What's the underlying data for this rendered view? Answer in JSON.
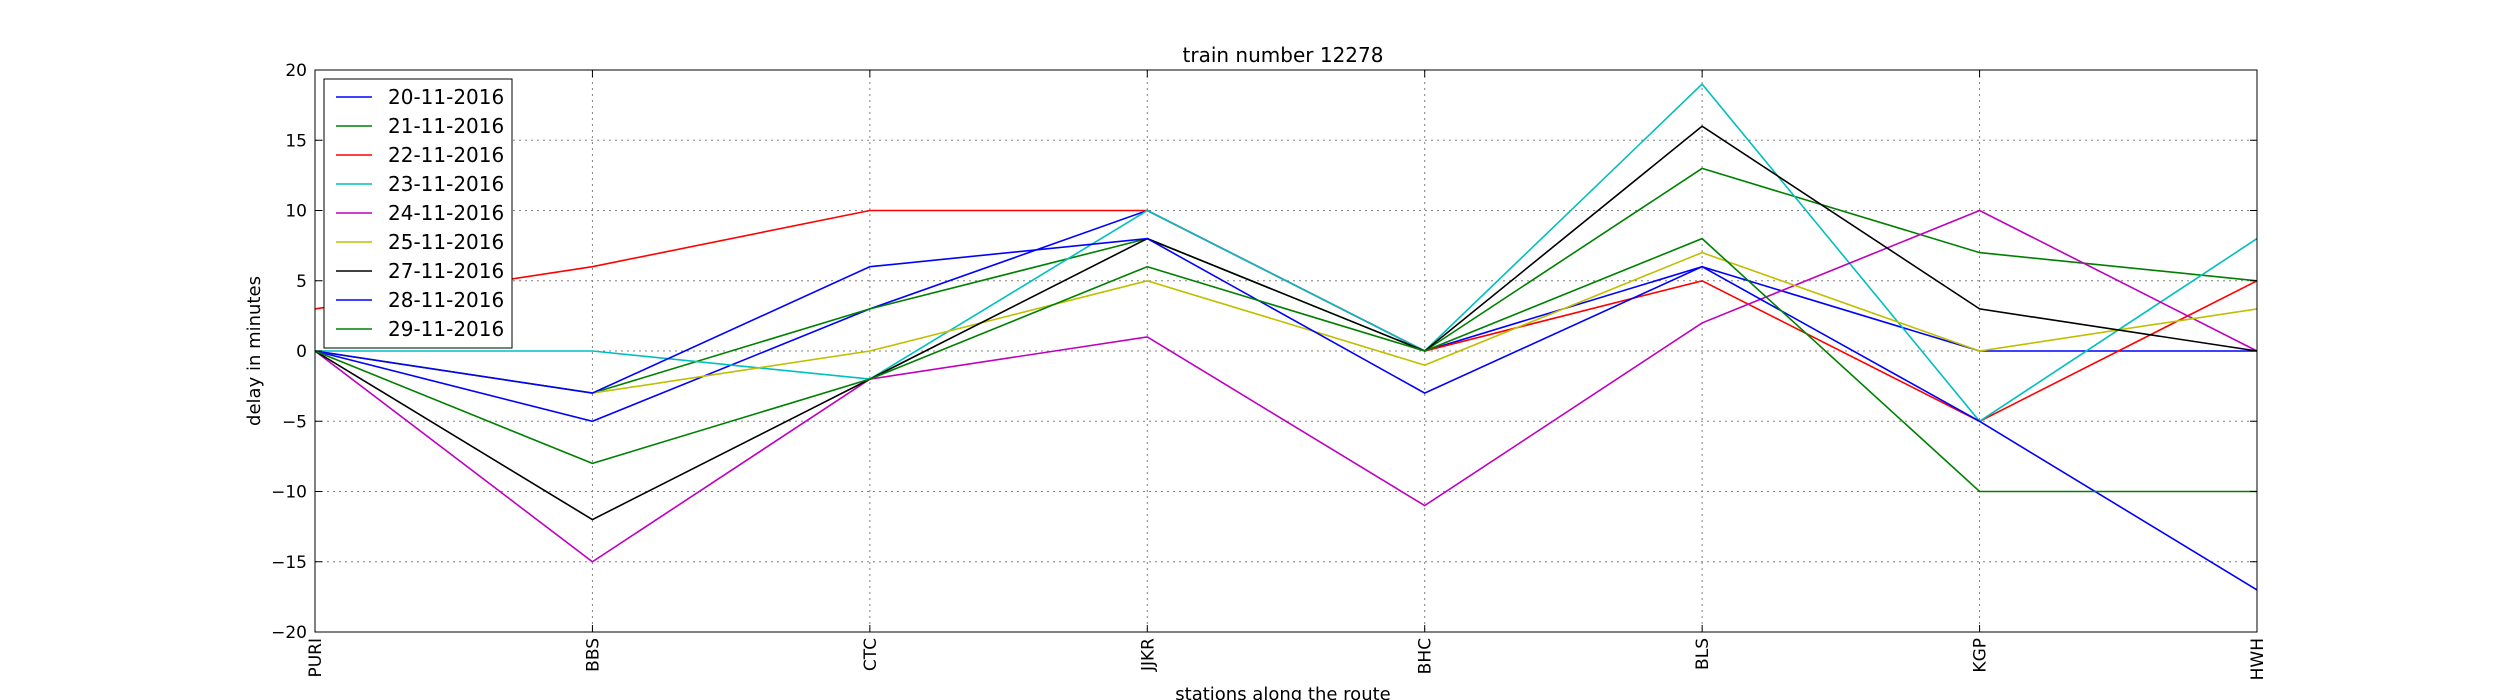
{
  "chart_data": {
    "type": "line",
    "title": "train number 12278",
    "xlabel": "stations along the route",
    "ylabel": "delay in minutes",
    "categories": [
      "PURI",
      "BBS",
      "CTC",
      "JJKR",
      "BHC",
      "BLS",
      "KGP",
      "HWH"
    ],
    "ylim": [
      -20,
      20
    ],
    "yticks": [
      -20,
      -15,
      -10,
      -5,
      0,
      5,
      10,
      15,
      20
    ],
    "grid": true,
    "legend_position": "top-left",
    "series": [
      {
        "name": "20-11-2016",
        "color": "#0000ff",
        "values": [
          0,
          -5,
          3,
          10,
          0,
          6,
          0,
          0
        ]
      },
      {
        "name": "21-11-2016",
        "color": "#008000",
        "values": [
          0,
          -3,
          3,
          8,
          0,
          13,
          7,
          5
        ]
      },
      {
        "name": "22-11-2016",
        "color": "#ff0000",
        "values": [
          3,
          6,
          10,
          10,
          0,
          5,
          -5,
          5
        ]
      },
      {
        "name": "23-11-2016",
        "color": "#00bfbf",
        "values": [
          0,
          0,
          -2,
          10,
          0,
          19,
          -5,
          8
        ]
      },
      {
        "name": "24-11-2016",
        "color": "#bf00bf",
        "values": [
          0,
          -15,
          -2,
          1,
          -11,
          2,
          10,
          0
        ]
      },
      {
        "name": "25-11-2016",
        "color": "#bfbf00",
        "values": [
          0,
          -3,
          0,
          5,
          -1,
          7,
          0,
          3
        ]
      },
      {
        "name": "27-11-2016",
        "color": "#000000",
        "values": [
          0,
          -12,
          -2,
          8,
          0,
          16,
          3,
          0
        ]
      },
      {
        "name": "28-11-2016",
        "color": "#0000ff",
        "values": [
          0,
          -3,
          6,
          8,
          -3,
          6,
          -5,
          -17
        ]
      },
      {
        "name": "29-11-2016",
        "color": "#008000",
        "values": [
          0,
          -8,
          -2,
          6,
          0,
          8,
          -10,
          -10
        ]
      }
    ]
  }
}
